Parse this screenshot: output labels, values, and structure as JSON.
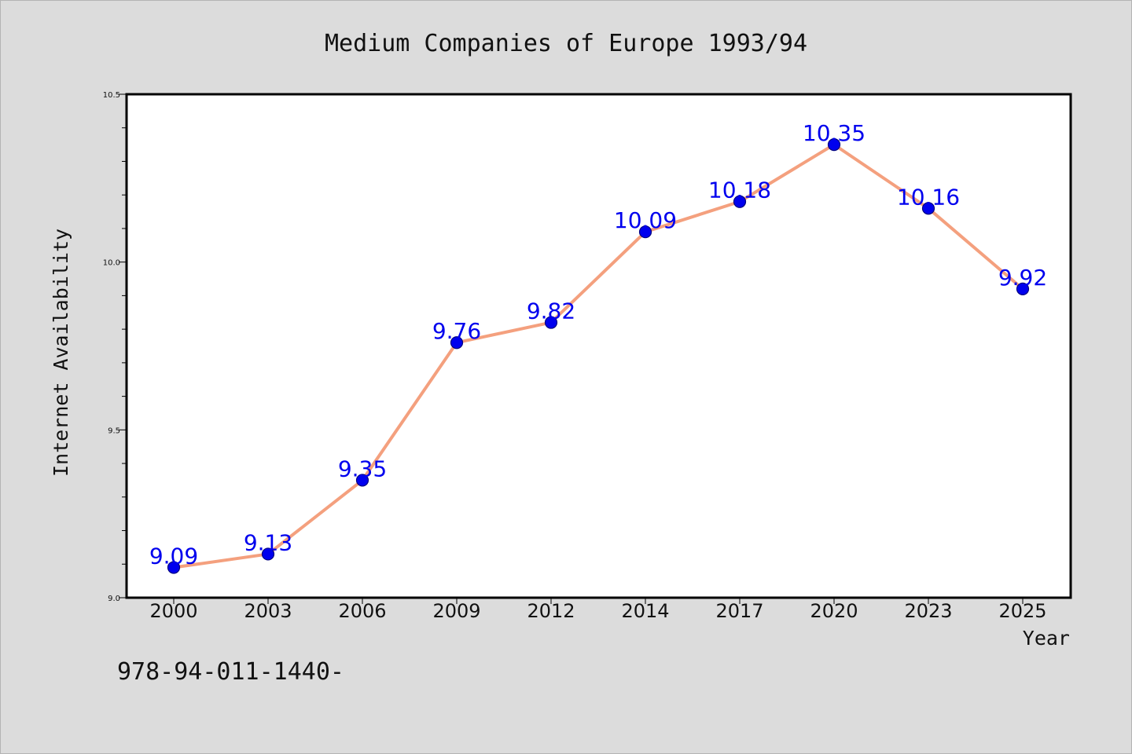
{
  "chart_data": {
    "type": "line",
    "title": "Medium Companies of Europe 1993/94",
    "xlabel": "Year",
    "ylabel": "Internet Availability",
    "x": [
      "2000",
      "2003",
      "2006",
      "2009",
      "2012",
      "2014",
      "2017",
      "2020",
      "2023",
      "2025"
    ],
    "values": [
      9.09,
      9.13,
      9.35,
      9.76,
      9.82,
      10.09,
      10.18,
      10.35,
      10.16,
      9.92
    ],
    "data_labels": [
      "9.09",
      "9.13",
      "9.35",
      "9.76",
      "9.82",
      "10.09",
      "10.18",
      "10.35",
      "10.16",
      "9.92"
    ],
    "ylim": [
      9.0,
      10.5
    ],
    "yticks": [
      9.0,
      9.5,
      10.0,
      10.5
    ],
    "ytick_labels": [
      "9.0",
      "9.5",
      "10.0",
      "10.5"
    ],
    "grid": false,
    "legend": "none",
    "colors": {
      "line": "#f4a07e",
      "marker_fill": "#0000ee",
      "marker_edge": "#000080",
      "data_label": "#0000ee",
      "plot_background": "#ffffff",
      "figure_background": "#dcdcdc"
    }
  },
  "footnote": "978-94-011-1440-"
}
